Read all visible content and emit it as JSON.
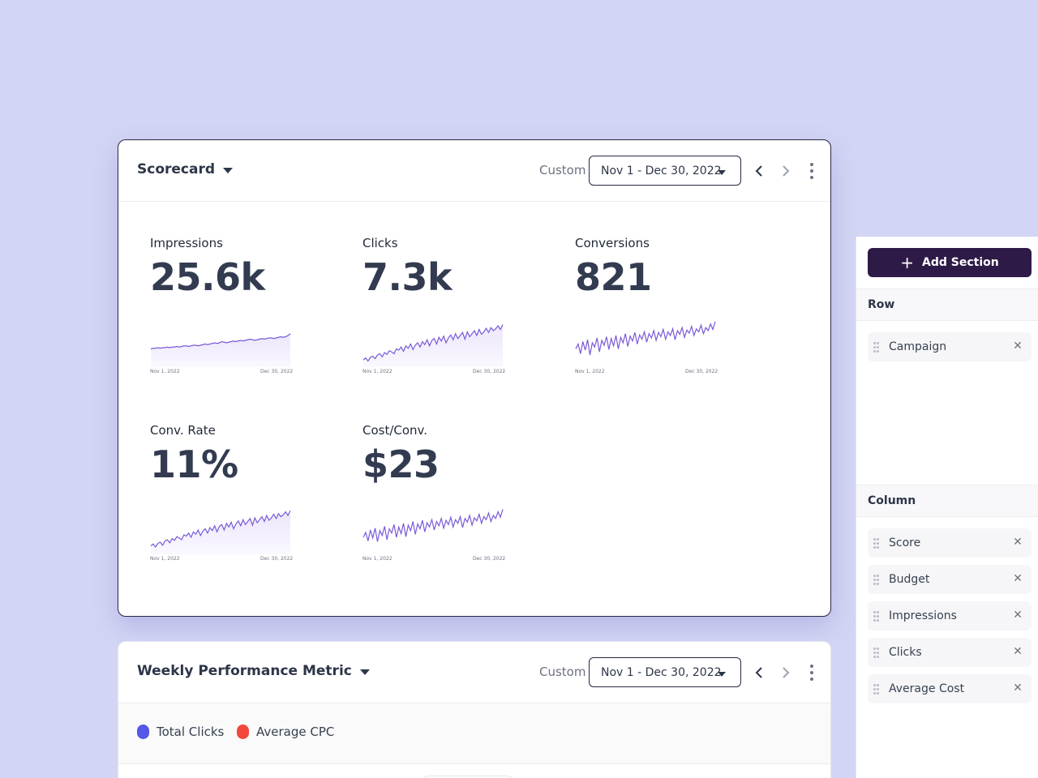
{
  "scorecard": {
    "title": "Scorecard",
    "custom_label": "Custom",
    "date_range": "Nov 1 - Dec 30, 2022",
    "metrics": [
      {
        "label": "Impressions",
        "value": "25.6k",
        "date_start": "Nov 1, 2022",
        "date_end": "Dec 30, 2022",
        "series": [
          30,
          31,
          31,
          32,
          31,
          32,
          32,
          33,
          32,
          33,
          33,
          34,
          33,
          34,
          35,
          35,
          34,
          35,
          36,
          36,
          35,
          36,
          37,
          38,
          37,
          38,
          39,
          40,
          39,
          40,
          42,
          41,
          40,
          41,
          42,
          43,
          42,
          43,
          44,
          43,
          44,
          45,
          46,
          45,
          44,
          45,
          46,
          47,
          46,
          47,
          48,
          48,
          47,
          48,
          49,
          50,
          49,
          50,
          52,
          55
        ],
        "fill": true
      },
      {
        "label": "Clicks",
        "value": "7.3k",
        "date_start": "Nov 1, 2022",
        "date_end": "Dec 30, 2022",
        "series": [
          12,
          15,
          10,
          16,
          18,
          14,
          20,
          22,
          17,
          24,
          21,
          27,
          25,
          22,
          30,
          28,
          33,
          26,
          35,
          31,
          38,
          29,
          36,
          40,
          33,
          42,
          37,
          45,
          35,
          44,
          47,
          38,
          49,
          43,
          51,
          40,
          48,
          53,
          45,
          55,
          47,
          52,
          57,
          46,
          58,
          50,
          55,
          60,
          52,
          62,
          54,
          58,
          64,
          57,
          65,
          60,
          63,
          68,
          62,
          70
        ],
        "fill": true
      },
      {
        "label": "Conversions",
        "value": "821",
        "date_start": "Nov 1, 2022",
        "date_end": "Dec 30, 2022",
        "series": [
          30,
          38,
          22,
          42,
          28,
          45,
          20,
          40,
          33,
          48,
          25,
          44,
          36,
          50,
          29,
          47,
          35,
          52,
          30,
          49,
          40,
          55,
          34,
          51,
          43,
          57,
          38,
          53,
          46,
          58,
          41,
          55,
          48,
          60,
          44,
          57,
          50,
          62,
          46,
          58,
          52,
          63,
          45,
          60,
          54,
          65,
          49,
          61,
          56,
          67,
          52,
          63,
          58,
          69,
          55,
          65,
          60,
          71,
          62,
          75
        ],
        "fill": false
      },
      {
        "label": "Conv. Rate",
        "value": "11%",
        "date_start": "Nov 1, 2022",
        "date_end": "Dec 30, 2022",
        "series": [
          14,
          17,
          12,
          18,
          20,
          15,
          22,
          24,
          19,
          26,
          23,
          29,
          27,
          24,
          32,
          30,
          35,
          28,
          37,
          33,
          40,
          31,
          38,
          42,
          35,
          44,
          39,
          47,
          37,
          46,
          49,
          40,
          51,
          45,
          53,
          42,
          50,
          55,
          47,
          57,
          49,
          54,
          59,
          48,
          60,
          52,
          57,
          62,
          54,
          64,
          56,
          60,
          66,
          59,
          67,
          62,
          65,
          70,
          64,
          72
        ],
        "fill": true
      },
      {
        "label": "Cost/Conv.",
        "value": "$23",
        "date_start": "Nov 1, 2022",
        "date_end": "Dec 30, 2022",
        "series": [
          28,
          36,
          22,
          40,
          27,
          43,
          21,
          39,
          31,
          46,
          24,
          42,
          35,
          49,
          28,
          45,
          34,
          51,
          29,
          48,
          39,
          54,
          33,
          50,
          42,
          56,
          37,
          52,
          45,
          57,
          40,
          54,
          47,
          59,
          43,
          56,
          49,
          61,
          45,
          57,
          51,
          62,
          44,
          59,
          53,
          64,
          48,
          60,
          55,
          66,
          51,
          62,
          57,
          68,
          54,
          64,
          59,
          70,
          61,
          74
        ],
        "fill": false
      }
    ]
  },
  "weekly": {
    "title": "Weekly Performance Metric",
    "custom_label": "Custom",
    "date_range": "Nov 1 - Dec 30, 2022",
    "legend": [
      {
        "label": "Total Clicks",
        "color": "#5457e8"
      },
      {
        "label": "Average CPC",
        "color": "#f4473b"
      }
    ]
  },
  "side_panel": {
    "add_button_label": "Add Section",
    "row_header": "Row",
    "row_items": [
      "Campaign"
    ],
    "column_header": "Column",
    "column_items": [
      "Score",
      "Budget",
      "Impressions",
      "Clicks",
      "Average Cost"
    ]
  },
  "colors": {
    "accent": "#7b5ad8",
    "primary_dark": "#2e1a47"
  },
  "icons": {
    "title_caret": "caret-down-icon",
    "prev": "chevron-left-icon",
    "next": "chevron-right-icon",
    "more": "kebab-icon",
    "drag": "drag-handle-icon",
    "remove": "close-icon",
    "add": "plus-icon"
  }
}
